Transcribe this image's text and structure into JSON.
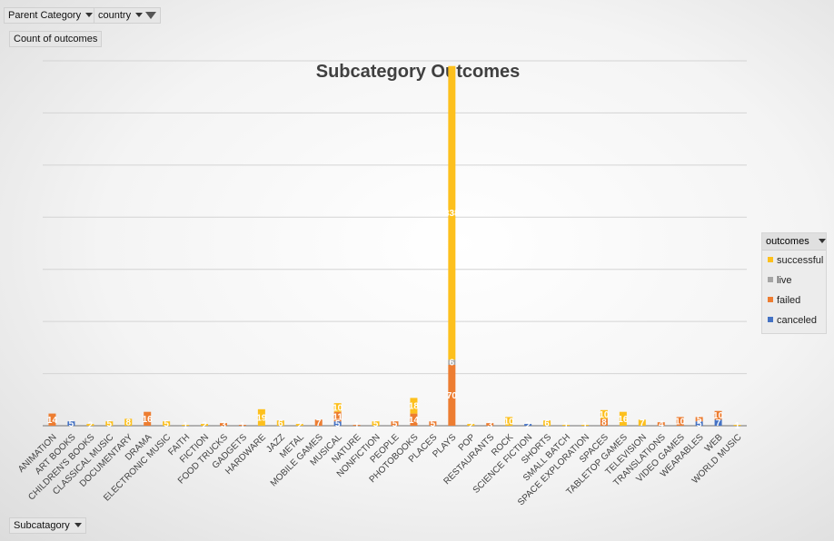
{
  "filters": {
    "parent_category": "Parent Category",
    "country": "country",
    "values_field": "Count of outcomes",
    "axis_field": "Subcatagory",
    "legend_field": "outcomes"
  },
  "colors": {
    "successful": "#fdc01d",
    "live": "#a5a5a5",
    "failed": "#ed7d31",
    "canceled": "#4472c4"
  },
  "chart_data": {
    "type": "bar",
    "stacked": true,
    "title": "Subcategory Outcomes",
    "ylim": [
      0,
      420
    ],
    "grid": true,
    "legend_position": "right",
    "categories": [
      "ANIMATION",
      "ART BOOKS",
      "CHILDREN'S BOOKS",
      "CLASSICAL MUSIC",
      "DOCUMENTARY",
      "DRAMA",
      "ELECTRONIC MUSIC",
      "FAITH",
      "FICTION",
      "FOOD TRUCKS",
      "GADGETS",
      "HARDWARE",
      "JAZZ",
      "METAL",
      "MOBILE GAMES",
      "MUSICAL",
      "NATURE",
      "NONFICTION",
      "PEOPLE",
      "PHOTOBOOKS",
      "PLACES",
      "PLAYS",
      "POP",
      "RESTAURANTS",
      "ROCK",
      "SCIENCE FICTION",
      "SHORTS",
      "SMALL BATCH",
      "SPACE EXPLORATION",
      "SPACES",
      "TABLETOP GAMES",
      "TELEVISION",
      "TRANSLATIONS",
      "VIDEO GAMES",
      "WEARABLES",
      "WEB",
      "WORLD MUSIC"
    ],
    "series": [
      {
        "name": "canceled",
        "values": [
          0,
          5,
          0,
          0,
          0,
          0,
          0,
          0,
          0,
          0,
          0,
          0,
          0,
          0,
          0,
          5,
          0,
          0,
          0,
          0,
          0,
          0,
          0,
          0,
          0,
          2,
          0,
          0,
          0,
          0,
          0,
          0,
          0,
          0,
          5,
          7,
          0
        ]
      },
      {
        "name": "failed",
        "values": [
          14,
          0,
          0,
          0,
          0,
          16,
          0,
          0,
          0,
          3,
          1,
          0,
          0,
          0,
          7,
          11,
          1,
          0,
          5,
          14,
          5,
          70,
          0,
          3,
          0,
          0,
          0,
          0,
          0,
          8,
          0,
          0,
          4,
          10,
          5,
          10,
          0
        ]
      },
      {
        "name": "live",
        "values": [
          0,
          0,
          0,
          0,
          0,
          0,
          0,
          0,
          0,
          0,
          0,
          0,
          0,
          0,
          0,
          0,
          0,
          0,
          0,
          0,
          0,
          6,
          0,
          0,
          0,
          0,
          0,
          0,
          0,
          0,
          0,
          0,
          0,
          0,
          0,
          0,
          0
        ]
      },
      {
        "name": "successful",
        "values": [
          0,
          0,
          2,
          5,
          8,
          0,
          5,
          1,
          2,
          0,
          0,
          19,
          6,
          2,
          0,
          10,
          0,
          5,
          0,
          18,
          0,
          338,
          2,
          0,
          10,
          0,
          6,
          1,
          1,
          10,
          16,
          7,
          0,
          0,
          0,
          0,
          1
        ]
      }
    ]
  }
}
